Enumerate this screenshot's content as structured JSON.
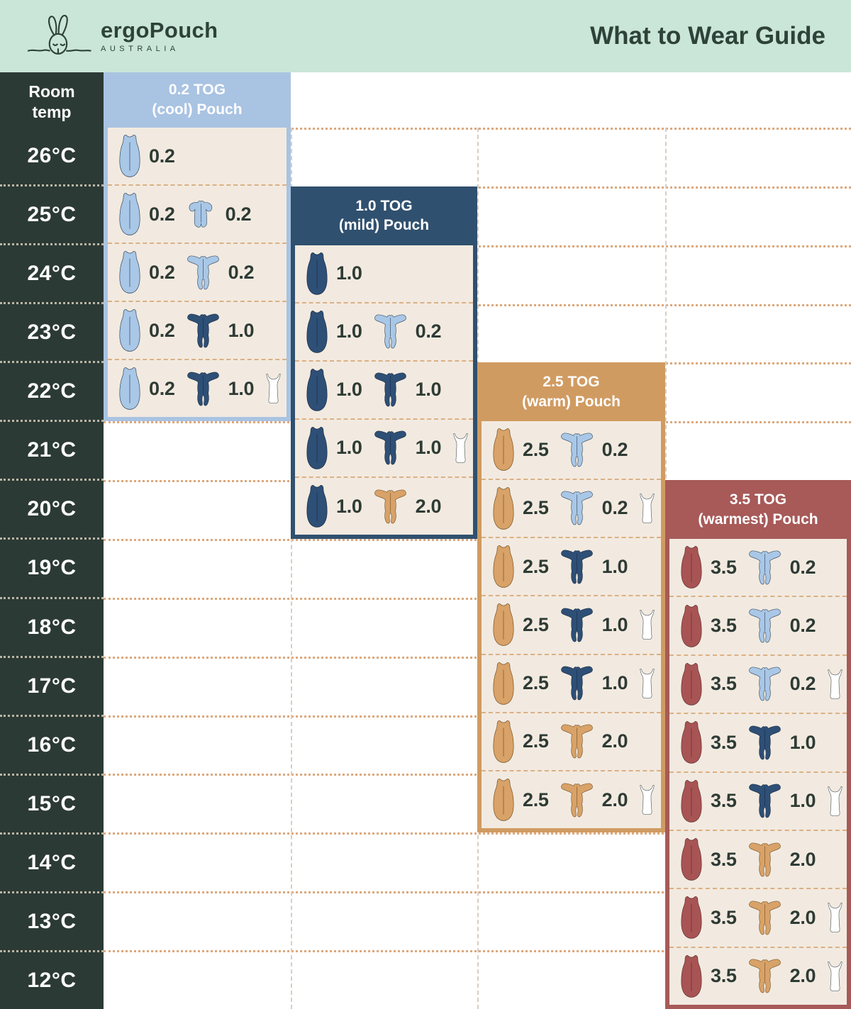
{
  "header": {
    "brand": "ergoPouch",
    "brand_sub": "AUSTRALIA",
    "title": "What to Wear Guide"
  },
  "chart_data": {
    "type": "table",
    "title": "What to Wear Guide",
    "row_header": "Room temp",
    "temps": [
      "26°C",
      "25°C",
      "24°C",
      "23°C",
      "22°C",
      "21°C",
      "20°C",
      "19°C",
      "18°C",
      "17°C",
      "16°C",
      "15°C",
      "14°C",
      "13°C",
      "12°C"
    ],
    "icon_legend": {
      "pouch": "sleep-pouch-icon",
      "onesie": "long-sleeve-onesie-icon",
      "romper": "short-sleeve-romper-icon",
      "singlet": "singlet-icon"
    },
    "icon_colors": {
      "lightblue": "#a9c7e6",
      "navy": "#2e4f76",
      "tan": "#d8a268",
      "red": "#a85454",
      "white": "#ffffff"
    },
    "panels": [
      {
        "title_line1": "0.2 TOG",
        "title_line2": "(cool) Pouch",
        "color": "#a9c3e2",
        "rows": [
          {
            "temp": "26°C",
            "items": [
              {
                "icon": "pouch",
                "color": "lightblue",
                "tog": "0.2"
              }
            ]
          },
          {
            "temp": "25°C",
            "items": [
              {
                "icon": "pouch",
                "color": "lightblue",
                "tog": "0.2"
              },
              {
                "icon": "romper",
                "color": "lightblue",
                "tog": "0.2"
              }
            ]
          },
          {
            "temp": "24°C",
            "items": [
              {
                "icon": "pouch",
                "color": "lightblue",
                "tog": "0.2"
              },
              {
                "icon": "onesie",
                "color": "lightblue",
                "tog": "0.2"
              }
            ]
          },
          {
            "temp": "23°C",
            "items": [
              {
                "icon": "pouch",
                "color": "lightblue",
                "tog": "0.2"
              },
              {
                "icon": "onesie",
                "color": "navy",
                "tog": "1.0"
              }
            ]
          },
          {
            "temp": "22°C",
            "items": [
              {
                "icon": "pouch",
                "color": "lightblue",
                "tog": "0.2"
              },
              {
                "icon": "onesie",
                "color": "navy",
                "tog": "1.0"
              },
              {
                "icon": "singlet",
                "color": "white",
                "tog": ""
              }
            ]
          }
        ]
      },
      {
        "title_line1": "1.0 TOG",
        "title_line2": "(mild) Pouch",
        "color": "#30506f",
        "rows": [
          {
            "temp": "24°C",
            "items": [
              {
                "icon": "pouch",
                "color": "navy",
                "tog": "1.0"
              }
            ]
          },
          {
            "temp": "23°C",
            "items": [
              {
                "icon": "pouch",
                "color": "navy",
                "tog": "1.0"
              },
              {
                "icon": "onesie",
                "color": "lightblue",
                "tog": "0.2"
              }
            ]
          },
          {
            "temp": "22°C",
            "items": [
              {
                "icon": "pouch",
                "color": "navy",
                "tog": "1.0"
              },
              {
                "icon": "onesie",
                "color": "navy",
                "tog": "1.0"
              }
            ]
          },
          {
            "temp": "21°C",
            "items": [
              {
                "icon": "pouch",
                "color": "navy",
                "tog": "1.0"
              },
              {
                "icon": "onesie",
                "color": "navy",
                "tog": "1.0"
              },
              {
                "icon": "singlet",
                "color": "white",
                "tog": ""
              }
            ]
          },
          {
            "temp": "20°C",
            "items": [
              {
                "icon": "pouch",
                "color": "navy",
                "tog": "1.0"
              },
              {
                "icon": "onesie",
                "color": "tan",
                "tog": "2.0"
              }
            ]
          }
        ]
      },
      {
        "title_line1": "2.5 TOG",
        "title_line2": "(warm) Pouch",
        "color": "#d09b61",
        "rows": [
          {
            "temp": "21°C",
            "items": [
              {
                "icon": "pouch",
                "color": "tan",
                "tog": "2.5"
              },
              {
                "icon": "onesie",
                "color": "lightblue",
                "tog": "0.2"
              }
            ]
          },
          {
            "temp": "20°C",
            "items": [
              {
                "icon": "pouch",
                "color": "tan",
                "tog": "2.5"
              },
              {
                "icon": "onesie",
                "color": "lightblue",
                "tog": "0.2"
              },
              {
                "icon": "singlet",
                "color": "white",
                "tog": ""
              }
            ]
          },
          {
            "temp": "19°C",
            "items": [
              {
                "icon": "pouch",
                "color": "tan",
                "tog": "2.5"
              },
              {
                "icon": "onesie",
                "color": "navy",
                "tog": "1.0"
              }
            ]
          },
          {
            "temp": "18°C",
            "items": [
              {
                "icon": "pouch",
                "color": "tan",
                "tog": "2.5"
              },
              {
                "icon": "onesie",
                "color": "navy",
                "tog": "1.0"
              },
              {
                "icon": "singlet",
                "color": "white",
                "tog": ""
              }
            ]
          },
          {
            "temp": "17°C",
            "items": [
              {
                "icon": "pouch",
                "color": "tan",
                "tog": "2.5"
              },
              {
                "icon": "onesie",
                "color": "navy",
                "tog": "1.0"
              },
              {
                "icon": "singlet",
                "color": "white",
                "tog": ""
              }
            ]
          },
          {
            "temp": "16°C",
            "items": [
              {
                "icon": "pouch",
                "color": "tan",
                "tog": "2.5"
              },
              {
                "icon": "onesie",
                "color": "tan",
                "tog": "2.0"
              }
            ]
          },
          {
            "temp": "15°C",
            "items": [
              {
                "icon": "pouch",
                "color": "tan",
                "tog": "2.5"
              },
              {
                "icon": "onesie",
                "color": "tan",
                "tog": "2.0"
              },
              {
                "icon": "singlet",
                "color": "white",
                "tog": ""
              }
            ]
          }
        ]
      },
      {
        "title_line1": "3.5 TOG",
        "title_line2": "(warmest) Pouch",
        "color": "#a75a58",
        "rows": [
          {
            "temp": "19°C",
            "items": [
              {
                "icon": "pouch",
                "color": "red",
                "tog": "3.5"
              },
              {
                "icon": "onesie",
                "color": "lightblue",
                "tog": "0.2"
              }
            ]
          },
          {
            "temp": "18°C",
            "items": [
              {
                "icon": "pouch",
                "color": "red",
                "tog": "3.5"
              },
              {
                "icon": "onesie",
                "color": "lightblue",
                "tog": "0.2"
              }
            ]
          },
          {
            "temp": "17°C",
            "items": [
              {
                "icon": "pouch",
                "color": "red",
                "tog": "3.5"
              },
              {
                "icon": "onesie",
                "color": "lightblue",
                "tog": "0.2"
              },
              {
                "icon": "singlet",
                "color": "white",
                "tog": ""
              }
            ]
          },
          {
            "temp": "16°C",
            "items": [
              {
                "icon": "pouch",
                "color": "red",
                "tog": "3.5"
              },
              {
                "icon": "onesie",
                "color": "navy",
                "tog": "1.0"
              }
            ]
          },
          {
            "temp": "15°C",
            "items": [
              {
                "icon": "pouch",
                "color": "red",
                "tog": "3.5"
              },
              {
                "icon": "onesie",
                "color": "navy",
                "tog": "1.0"
              },
              {
                "icon": "singlet",
                "color": "white",
                "tog": ""
              }
            ]
          },
          {
            "temp": "14°C",
            "items": [
              {
                "icon": "pouch",
                "color": "red",
                "tog": "3.5"
              },
              {
                "icon": "onesie",
                "color": "tan",
                "tog": "2.0"
              }
            ]
          },
          {
            "temp": "13°C",
            "items": [
              {
                "icon": "pouch",
                "color": "red",
                "tog": "3.5"
              },
              {
                "icon": "onesie",
                "color": "tan",
                "tog": "2.0"
              },
              {
                "icon": "singlet",
                "color": "white",
                "tog": ""
              }
            ]
          },
          {
            "temp": "12°C",
            "items": [
              {
                "icon": "pouch",
                "color": "red",
                "tog": "3.5"
              },
              {
                "icon": "onesie",
                "color": "tan",
                "tog": "2.0"
              },
              {
                "icon": "singlet",
                "color": "white",
                "tog": ""
              }
            ]
          }
        ]
      }
    ]
  }
}
